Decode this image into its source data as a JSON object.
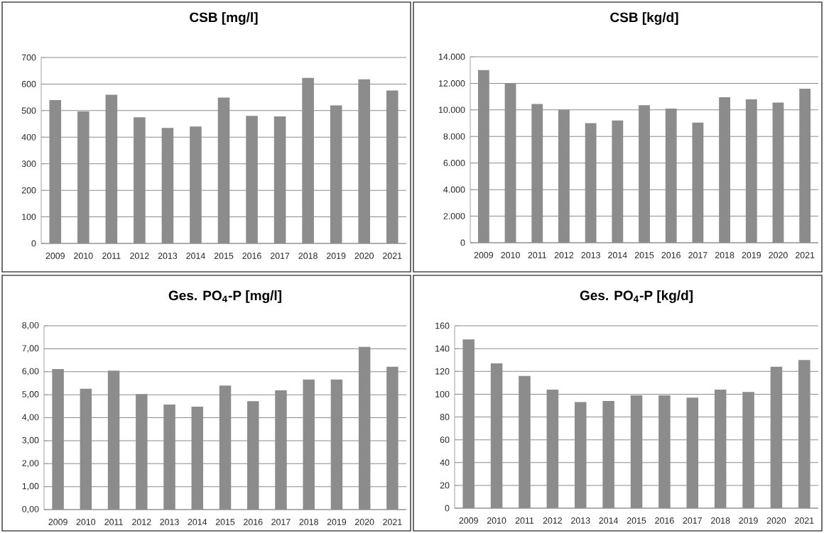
{
  "chart_data": [
    {
      "type": "bar",
      "title": "CSB [mg/l]",
      "categories": [
        "2009",
        "2010",
        "2011",
        "2012",
        "2013",
        "2014",
        "2015",
        "2016",
        "2017",
        "2018",
        "2019",
        "2020",
        "2021"
      ],
      "values": [
        540,
        497,
        560,
        475,
        435,
        440,
        549,
        480,
        478,
        623,
        520,
        618,
        576
      ],
      "color": "#8c8c8c",
      "ylim": [
        0,
        700
      ],
      "yticks": [
        0,
        100,
        200,
        300,
        400,
        500,
        600,
        700
      ],
      "grid": "y"
    },
    {
      "type": "bar",
      "title": "CSB [kg/d]",
      "categories": [
        "2009",
        "2010",
        "2011",
        "2012",
        "2013",
        "2014",
        "2015",
        "2016",
        "2017",
        "2018",
        "2019",
        "2020",
        "2021"
      ],
      "values": [
        13000,
        12000,
        10450,
        10000,
        9000,
        9200,
        10350,
        10100,
        9050,
        10950,
        10800,
        10550,
        11600
      ],
      "color": "#8c8c8c",
      "ylim": [
        0,
        14000
      ],
      "yticks": [
        0,
        {
          "value": 2000,
          "label": "2.000"
        },
        {
          "value": 4000,
          "label": "4.000"
        },
        {
          "value": 6000,
          "label": "6.000"
        },
        {
          "value": 8000,
          "label": "8.000"
        },
        {
          "value": 10000,
          "label": "10.000"
        },
        {
          "value": 12000,
          "label": "12.000"
        },
        {
          "value": 14000,
          "label": "14.000"
        }
      ],
      "grid": "y"
    },
    {
      "type": "bar",
      "title": "Ges. PO$_{4}$-P [mg/l]",
      "categories": [
        "2009",
        "2010",
        "2011",
        "2012",
        "2013",
        "2014",
        "2015",
        "2016",
        "2017",
        "2018",
        "2019",
        "2020",
        "2021"
      ],
      "values": [
        6.12,
        5.26,
        6.05,
        5.03,
        4.57,
        4.48,
        5.4,
        4.72,
        5.19,
        5.66,
        5.66,
        7.08,
        6.22
      ],
      "color": "#8c8c8c",
      "ylim": [
        0,
        8
      ],
      "yticks": [
        {
          "value": 0,
          "label": "0,00"
        },
        {
          "value": 1,
          "label": "1,00"
        },
        {
          "value": 2,
          "label": "2,00"
        },
        {
          "value": 3,
          "label": "3,00"
        },
        {
          "value": 4,
          "label": "4,00"
        },
        {
          "value": 5,
          "label": "5,00"
        },
        {
          "value": 6,
          "label": "6,00"
        },
        {
          "value": 7,
          "label": "7,00"
        },
        {
          "value": 8,
          "label": "8,00"
        }
      ],
      "grid": "y"
    },
    {
      "type": "bar",
      "title": "Ges. PO$_{4}$-P [kg/d]",
      "categories": [
        "2009",
        "2010",
        "2011",
        "2012",
        "2013",
        "2014",
        "2015",
        "2016",
        "2017",
        "2018",
        "2019",
        "2020",
        "2021"
      ],
      "values": [
        148,
        127,
        116,
        104,
        93,
        94,
        99,
        99,
        97,
        104,
        102,
        124,
        130
      ],
      "color": "#8c8c8c",
      "ylim": [
        0,
        160
      ],
      "yticks": [
        0,
        20,
        40,
        60,
        80,
        100,
        120,
        140,
        160
      ],
      "grid": "y"
    }
  ]
}
